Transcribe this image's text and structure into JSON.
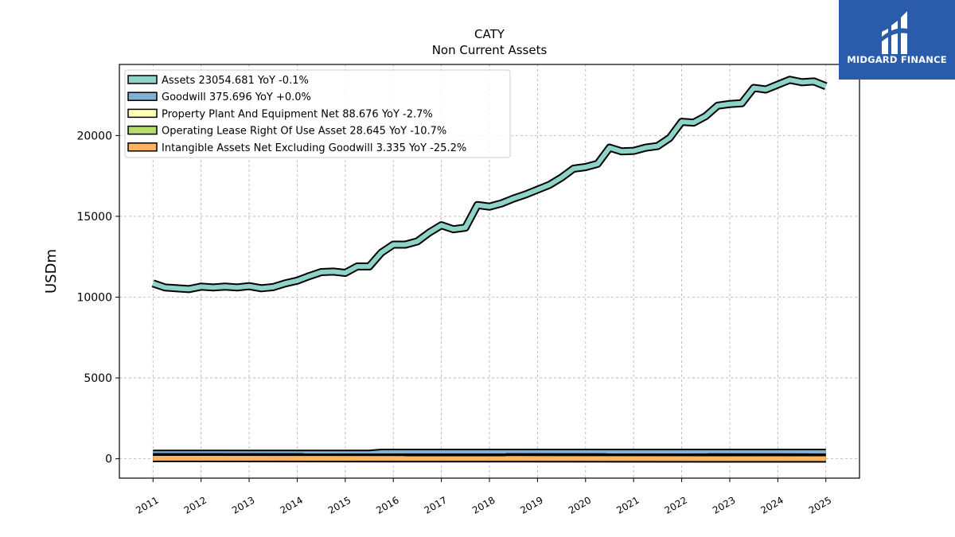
{
  "logo": {
    "text": "MIDGARD FINANCE"
  },
  "colors": {
    "assets": "#8dd3c7",
    "goodwill": "#80b1d3",
    "ppe": "#ffffb3",
    "lease": "#b3de69",
    "intangible": "#fdb462",
    "logo_bg": "#2a5cab"
  },
  "chart_data": {
    "type": "line",
    "title": "CATY",
    "subtitle": "Non Current  Assets",
    "ylabel": "USDm",
    "xlabel": "",
    "ylim": [
      -1200,
      24400
    ],
    "xlim": [
      2010.3,
      2025.7
    ],
    "yticks": [
      0,
      5000,
      10000,
      15000,
      20000
    ],
    "xticks": [
      "2011",
      "2012",
      "2013",
      "2014",
      "2015",
      "2016",
      "2017",
      "2018",
      "2019",
      "2020",
      "2021",
      "2022",
      "2023",
      "2024",
      "2025"
    ],
    "grid": true,
    "legend_position": "top-left",
    "series": [
      {
        "name": "Assets  23054.681 YoY -0.1%",
        "color_key": "assets",
        "x": [
          2011.0,
          2011.25,
          2011.5,
          2011.75,
          2012.0,
          2012.25,
          2012.5,
          2012.75,
          2013.0,
          2013.25,
          2013.5,
          2013.75,
          2014.0,
          2014.25,
          2014.5,
          2014.75,
          2015.0,
          2015.25,
          2015.5,
          2015.75,
          2016.0,
          2016.25,
          2016.5,
          2016.75,
          2017.0,
          2017.25,
          2017.5,
          2017.75,
          2018.0,
          2018.25,
          2018.5,
          2018.75,
          2019.0,
          2019.25,
          2019.5,
          2019.75,
          2020.0,
          2020.25,
          2020.5,
          2020.75,
          2021.0,
          2021.25,
          2021.5,
          2021.75,
          2022.0,
          2022.25,
          2022.5,
          2022.75,
          2023.0,
          2023.25,
          2023.5,
          2023.75,
          2024.0,
          2024.25,
          2024.5,
          2024.75,
          2025.0
        ],
        "values": [
          10850,
          10600,
          10550,
          10500,
          10650,
          10600,
          10650,
          10600,
          10680,
          10550,
          10620,
          10850,
          11020,
          11300,
          11550,
          11580,
          11500,
          11900,
          11900,
          12750,
          13250,
          13250,
          13450,
          14000,
          14450,
          14200,
          14300,
          15700,
          15600,
          15800,
          16100,
          16350,
          16650,
          16950,
          17400,
          17950,
          18050,
          18250,
          19250,
          19020,
          19050,
          19250,
          19350,
          19850,
          20850,
          20800,
          21200,
          21850,
          21950,
          22000,
          22950,
          22850,
          23150,
          23450,
          23300,
          23350,
          23054.681
        ]
      },
      {
        "name": "Goodwill  375.696 YoY +0.0%",
        "color_key": "goodwill",
        "x": [
          2011.0,
          2015.5,
          2015.75,
          2025.0
        ],
        "values": [
          316,
          316,
          375.696,
          375.696
        ]
      },
      {
        "name": "Property Plant And Equipment Net  88.676 YoY -2.7%",
        "color_key": "ppe",
        "x": [
          2011.0,
          2025.0
        ],
        "values": [
          105,
          88.676
        ]
      },
      {
        "name": "Operating Lease Right Of Use Asset  28.645 YoY -10.7%",
        "color_key": "lease",
        "x": [
          2019.0,
          2025.0
        ],
        "values": [
          35,
          28.645
        ]
      },
      {
        "name": "Intangible Assets Net Excluding Goodwill  3.335 YoY -25.2%",
        "color_key": "intangible",
        "x": [
          2011.0,
          2025.0
        ],
        "values": [
          30,
          3.335
        ]
      }
    ]
  }
}
